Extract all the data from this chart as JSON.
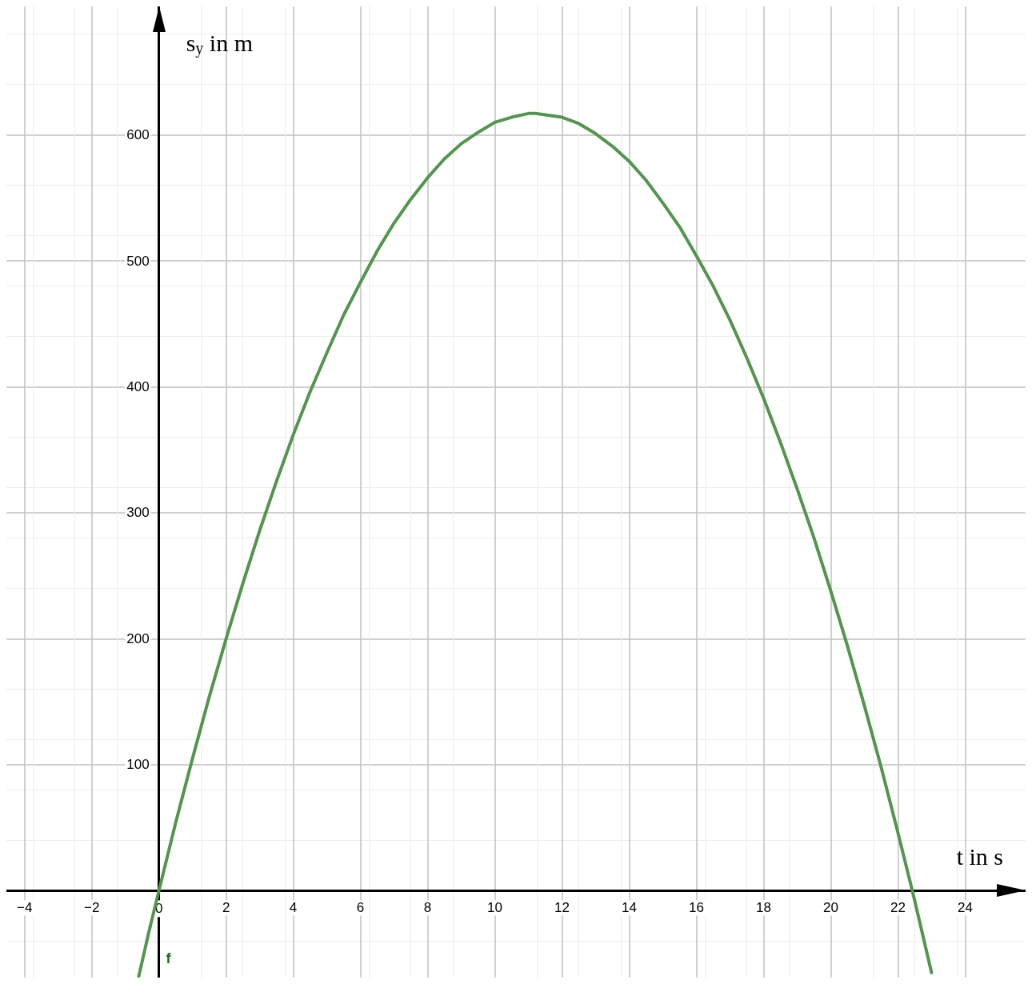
{
  "chart_data": {
    "type": "line",
    "xlabel": "t in s",
    "ylabel": "s$_{y}$ in m",
    "x": [
      -0.6,
      -0.3,
      0,
      0.5,
      1,
      1.5,
      2,
      2.5,
      3,
      3.5,
      4,
      4.5,
      5,
      5.5,
      6,
      6.5,
      7,
      7.5,
      8,
      8.5,
      9,
      9.5,
      10,
      10.5,
      11,
      11.2,
      11.5,
      12,
      12.5,
      13,
      13.5,
      14,
      14.5,
      15,
      15.5,
      16,
      16.5,
      17,
      17.5,
      18,
      18.5,
      19,
      19.5,
      20,
      20.5,
      21,
      21.5,
      22,
      22.4,
      22.5,
      23
    ],
    "series": [
      {
        "name": "f",
        "color": "#52964e",
        "values": [
          -68,
          -33,
          0,
          54,
          105,
          154,
          200,
          244,
          286,
          325,
          362,
          396,
          427,
          457,
          483,
          508,
          530,
          549,
          566,
          581,
          593,
          602,
          610,
          614,
          617,
          617,
          616,
          614,
          609,
          601,
          591,
          579,
          564,
          546,
          527,
          504,
          480,
          453,
          423,
          391,
          356,
          319,
          280,
          238,
          194,
          147,
          98,
          46,
          3,
          -8,
          -65
        ]
      }
    ],
    "xlim": [
      -4.54,
      25.8
    ],
    "ylim": [
      -69,
      702
    ],
    "xticks": [
      -4,
      -2,
      0,
      2,
      4,
      6,
      8,
      10,
      12,
      14,
      16,
      18,
      20,
      22,
      24
    ],
    "yticks": [
      100,
      200,
      300,
      400,
      500,
      600
    ],
    "grid": true,
    "marker": "none",
    "line_style": "solid",
    "legend": false
  }
}
